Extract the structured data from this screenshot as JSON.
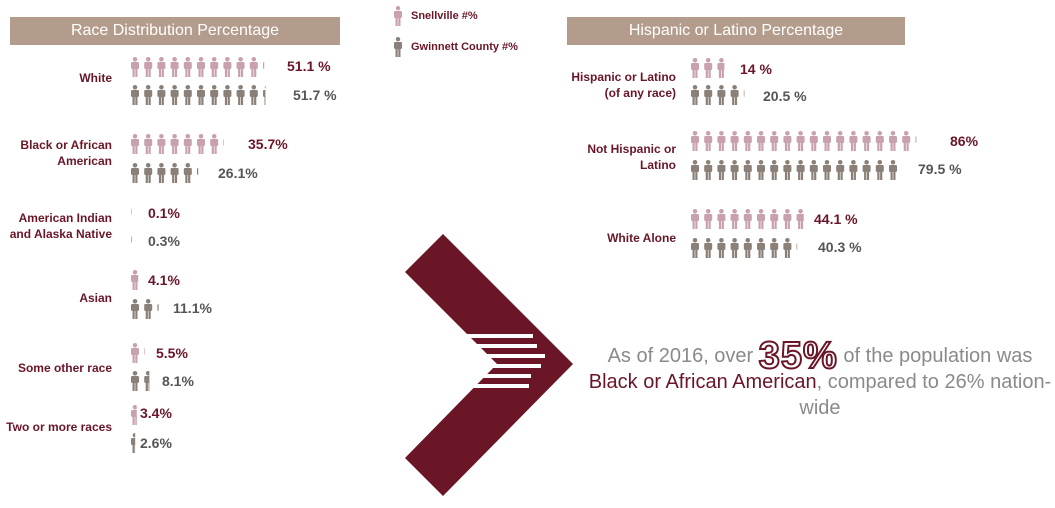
{
  "chart_data": [
    {
      "type": "pictograph",
      "title": "Race Distribution Percentage",
      "series": [
        {
          "name": "Snellville #%",
          "color": "#c9a0ae"
        },
        {
          "name": "Gwinnett County #%",
          "color": "#8a8078"
        }
      ],
      "categories": [
        "White",
        "Black or African American",
        "American Indian and Alaska Native",
        "Asian",
        "Some other race",
        "Two or more races"
      ],
      "snellville": [
        51.1,
        35.7,
        0.1,
        4.1,
        5.5,
        3.4
      ],
      "gwinnett": [
        51.7,
        26.1,
        0.3,
        11.1,
        8.1,
        2.6
      ],
      "snellville_labels": [
        "51.1 %",
        "35.7%",
        "0.1%",
        "4.1%",
        "5.5%",
        "3.4%"
      ],
      "gwinnett_labels": [
        "51.7 %",
        "26.1%",
        "0.3%",
        "11.1%",
        "8.1%",
        "2.6%"
      ],
      "units_per_icon": 5
    },
    {
      "type": "pictograph",
      "title": "Hispanic or Latino Percentage",
      "categories": [
        "Hispanic or Latino (of any race)",
        "Not Hispanic or Latino",
        "White Alone"
      ],
      "snellville": [
        14,
        86,
        44.1
      ],
      "gwinnett": [
        20.5,
        79.5,
        40.3
      ],
      "snellville_labels": [
        "14 %",
        "86%",
        "44.1 %"
      ],
      "gwinnett_labels": [
        "20.5 %",
        "79.5 %",
        "40.3 %"
      ],
      "units_per_icon": 5
    }
  ],
  "legend": {
    "snellville": "Snellville #%",
    "gwinnett": "Gwinnett County #%"
  },
  "note": {
    "prefix": "As of 2016, over",
    "big": "35%",
    "mid": "of the population was",
    "highlight": "Black or African American",
    "suffix": ", compared to 26% nation-wide"
  },
  "colors": {
    "snellville": "#c9a0ae",
    "gwinnett": "#8a8078",
    "accent": "#6a1627",
    "header_bg": "#b49c8c"
  }
}
